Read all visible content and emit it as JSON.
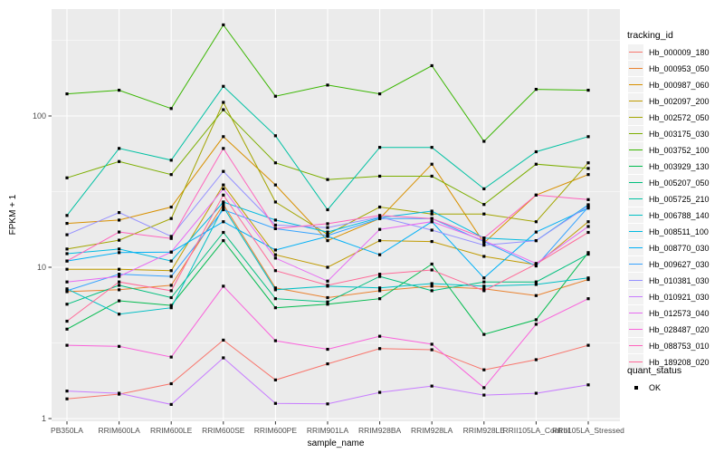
{
  "chart_data": {
    "type": "line",
    "title": "",
    "xlabel": "sample_name",
    "ylabel": "FPKM + 1",
    "y_scale": "log10",
    "ylim": [
      1,
      450
    ],
    "y_ticks": [
      1,
      10,
      100
    ],
    "y_minor_ticks": [
      3.162,
      31.62,
      316.2
    ],
    "grid": "on",
    "legend_position": "right",
    "legend_title": "tracking_id",
    "point_legend_title": "quant_status",
    "point_legend_items": [
      {
        "label": "OK",
        "shape": "black-square"
      }
    ],
    "point_color": "#000000",
    "panel_bg": "#ebebeb",
    "grid_color": "#ffffff",
    "categories": [
      "PB350LA",
      "RRIM600LA",
      "RRIM600LE",
      "RRIM600SE",
      "RRIM600PE",
      "RRIM901LA",
      "RRIM928BA",
      "RRIM928LA",
      "RRIM928LE",
      "RRII105LA_Control",
      "RRII105LA_Stressed"
    ],
    "series": [
      {
        "name": "Hb_000009_180",
        "color": "#F8766D",
        "values": [
          1.35,
          1.45,
          1.7,
          3.3,
          1.8,
          2.3,
          2.9,
          2.85,
          2.1,
          2.45,
          3.05
        ]
      },
      {
        "name": "Hb_000953_050",
        "color": "#EA8331",
        "values": [
          6.9,
          7.1,
          7.6,
          26,
          7.3,
          6.3,
          7.0,
          7.5,
          7.2,
          6.5,
          8.3
        ]
      },
      {
        "name": "Hb_000987_060",
        "color": "#D89000",
        "values": [
          19.5,
          20.5,
          25,
          73,
          35,
          15,
          21,
          48,
          14.5,
          30,
          41
        ]
      },
      {
        "name": "Hb_002097_200",
        "color": "#C09B00",
        "values": [
          9.7,
          9.7,
          9.5,
          35,
          12.1,
          10,
          15,
          14.8,
          11.8,
          10.4,
          20
        ]
      },
      {
        "name": "Hb_002572_050",
        "color": "#A3A500",
        "values": [
          13.2,
          15.1,
          21,
          123,
          27,
          16.5,
          25,
          22.5,
          22.5,
          20,
          49
        ]
      },
      {
        "name": "Hb_003175_030",
        "color": "#7CAE00",
        "values": [
          39,
          50,
          41,
          110,
          49,
          38,
          40,
          40,
          26,
          48,
          45
        ]
      },
      {
        "name": "Hb_003752_100",
        "color": "#39B600",
        "values": [
          140,
          148,
          112,
          400,
          135,
          160,
          140,
          215,
          68,
          150,
          148
        ]
      },
      {
        "name": "Hb_003929_130",
        "color": "#00BB4E",
        "values": [
          3.9,
          6.0,
          5.6,
          15,
          5.4,
          5.7,
          6.2,
          10.5,
          3.6,
          4.5,
          12.5
        ]
      },
      {
        "name": "Hb_005207_050",
        "color": "#00BF7D",
        "values": [
          5.7,
          7.6,
          6.3,
          17,
          6.2,
          5.9,
          8.7,
          7.0,
          8.0,
          8.0,
          12.2
        ]
      },
      {
        "name": "Hb_005725_210",
        "color": "#00C1A3",
        "values": [
          22,
          61,
          51,
          157,
          74,
          24,
          62,
          62,
          33,
          58,
          73
        ]
      },
      {
        "name": "Hb_006788_140",
        "color": "#00BFC4",
        "values": [
          7.2,
          4.9,
          5.4,
          25,
          7.1,
          7.5,
          7.3,
          7.8,
          7.5,
          7.7,
          8.5
        ]
      },
      {
        "name": "Hb_008511_100",
        "color": "#00BAE0",
        "values": [
          12.3,
          13.2,
          11,
          27,
          20.5,
          17.1,
          21.3,
          23.5,
          15.6,
          15,
          25.9
        ]
      },
      {
        "name": "Hb_008770_030",
        "color": "#00B0F6",
        "values": [
          11,
          12.5,
          12.6,
          20,
          13,
          16,
          12.1,
          20,
          8.5,
          17.1,
          24.6
        ]
      },
      {
        "name": "Hb_009627_030",
        "color": "#35A2FF",
        "values": [
          7.0,
          9.0,
          8.7,
          24,
          18,
          16.2,
          21,
          21,
          14.8,
          10.2,
          25
        ]
      },
      {
        "name": "Hb_010381_030",
        "color": "#9590FF",
        "values": [
          16.4,
          23,
          16,
          43,
          19,
          18.3,
          21.5,
          17.6,
          14,
          15,
          25.5
        ]
      },
      {
        "name": "Hb_010921_030",
        "color": "#C77CFF",
        "values": [
          1.52,
          1.47,
          1.24,
          2.52,
          1.26,
          1.25,
          1.49,
          1.64,
          1.43,
          1.47,
          1.67
        ]
      },
      {
        "name": "Hb_012573_040",
        "color": "#E76BF3",
        "values": [
          8.0,
          8.7,
          12.6,
          33,
          11.5,
          8.1,
          17.8,
          20,
          15,
          10.6,
          18.6
        ]
      },
      {
        "name": "Hb_028487_020",
        "color": "#FA62DB",
        "values": [
          3.05,
          3.0,
          2.55,
          7.5,
          3.27,
          2.87,
          3.5,
          3.1,
          1.6,
          4.2,
          6.2
        ]
      },
      {
        "name": "Hb_088753_010",
        "color": "#FF62BC",
        "values": [
          11,
          17.1,
          15.5,
          61,
          18,
          19.4,
          22,
          21,
          15.6,
          30,
          28
        ]
      },
      {
        "name": "Hb_189208_020",
        "color": "#FF6A98",
        "values": [
          4.4,
          8.0,
          7.0,
          30,
          9.5,
          7.6,
          9.0,
          9.6,
          7.0,
          10.5,
          17
        ]
      }
    ]
  }
}
